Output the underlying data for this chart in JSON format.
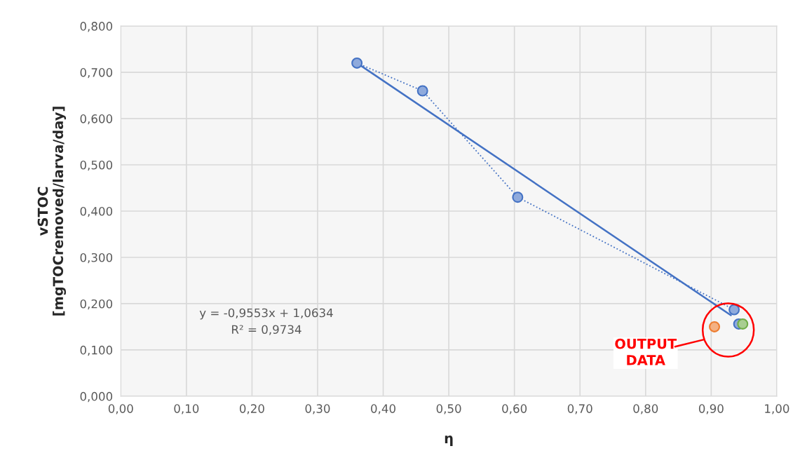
{
  "chart_data": {
    "type": "scatter",
    "xlabel": "η",
    "ylabel": "vSTOC\n[mgTOCremoved/larva/day]",
    "xlim": [
      0,
      1
    ],
    "ylim": [
      0,
      0.8
    ],
    "xticks": [
      {
        "value": 0,
        "label": "0,00"
      },
      {
        "value": 0.1,
        "label": "0,10"
      },
      {
        "value": 0.2,
        "label": "0,20"
      },
      {
        "value": 0.3,
        "label": "0,30"
      },
      {
        "value": 0.4,
        "label": "0,40"
      },
      {
        "value": 0.5,
        "label": "0,50"
      },
      {
        "value": 0.6,
        "label": "0,60"
      },
      {
        "value": 0.7,
        "label": "0,70"
      },
      {
        "value": 0.8,
        "label": "0,80"
      },
      {
        "value": 0.9,
        "label": "0,90"
      },
      {
        "value": 1,
        "label": "1,00"
      }
    ],
    "yticks": [
      {
        "value": 0,
        "label": "0,000"
      },
      {
        "value": 0.1,
        "label": "0,100"
      },
      {
        "value": 0.2,
        "label": "0,200"
      },
      {
        "value": 0.3,
        "label": "0,300"
      },
      {
        "value": 0.4,
        "label": "0,400"
      },
      {
        "value": 0.5,
        "label": "0,500"
      },
      {
        "value": 0.6,
        "label": "0,600"
      },
      {
        "value": 0.7,
        "label": "0,700"
      },
      {
        "value": 0.8,
        "label": "0,800"
      }
    ],
    "grid": true,
    "series": [
      {
        "type": "line",
        "line_style": "solid",
        "color": "#4472c4",
        "x": [
          0.36,
          0.93
        ],
        "values": [
          0.72,
          0.175
        ]
      },
      {
        "type": "line",
        "line_style": "dotted",
        "marker": "circle",
        "color": "#4472c4",
        "x": [
          0.36,
          0.46,
          0.605,
          0.935
        ],
        "values": [
          0.72,
          0.66,
          0.43,
          0.187
        ]
      },
      {
        "marker": "circle",
        "color": "#ed7d31",
        "x": [
          0.905
        ],
        "values": [
          0.15
        ]
      },
      {
        "marker": "circle",
        "color": "#4472c4",
        "x": [
          0.942
        ],
        "values": [
          0.156
        ]
      },
      {
        "marker": "circle",
        "color": "#70ad47",
        "x": [
          0.948
        ],
        "values": [
          0.156
        ]
      }
    ],
    "annotations": [
      "y = -0,9553x + 1,0634\nR² = 0,9734",
      "OUTPUT\nDATA"
    ]
  }
}
